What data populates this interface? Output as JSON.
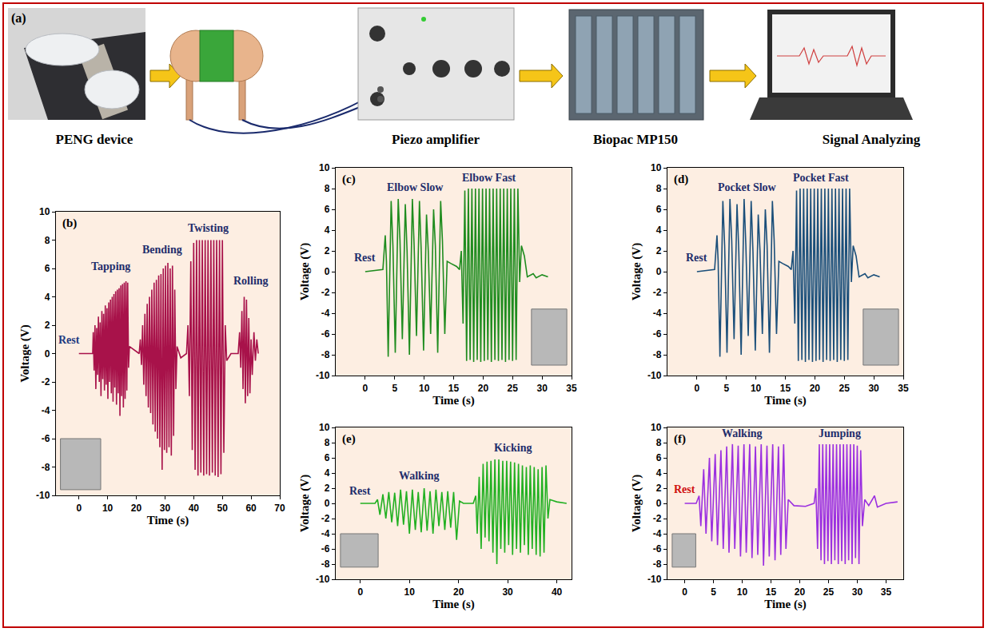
{
  "diagram": {
    "label": "(a)",
    "steps": [
      "PENG device",
      "Piezo amplifier",
      "Biopac MP150",
      "Signal Analyzing"
    ]
  },
  "chart_data": [
    {
      "type": "line",
      "panel_label": "(b)",
      "xlabel": "Time (s)",
      "ylabel": "Voltage (V)",
      "color": "#a8124a",
      "grid": false,
      "xlim": [
        -8,
        70
      ],
      "xticks": [
        0,
        10,
        20,
        30,
        40,
        50,
        60,
        70
      ],
      "ylim": [
        -10,
        10
      ],
      "yticks": [
        -10,
        -8,
        -6,
        -4,
        -2,
        0,
        2,
        4,
        6,
        8,
        10
      ],
      "x": [
        0,
        4.8,
        5.0,
        5.3,
        5.6,
        5.9,
        6.2,
        6.5,
        6.8,
        7.1,
        7.4,
        7.7,
        8.0,
        8.3,
        8.6,
        8.9,
        9.2,
        9.5,
        9.8,
        10.1,
        10.4,
        10.7,
        11.0,
        11.3,
        11.6,
        11.9,
        12.2,
        12.5,
        12.8,
        13.1,
        13.4,
        13.7,
        14.0,
        14.3,
        14.6,
        14.9,
        15.2,
        15.5,
        15.8,
        16.1,
        16.4,
        16.7,
        17.0,
        17.3,
        17.6,
        19.5,
        21.0,
        21.4,
        21.8,
        22.2,
        22.6,
        23.0,
        23.4,
        23.8,
        24.2,
        24.6,
        25.0,
        25.4,
        25.8,
        26.2,
        26.6,
        27.0,
        27.4,
        27.8,
        28.2,
        28.6,
        29.0,
        29.4,
        29.8,
        30.2,
        30.6,
        31.0,
        31.4,
        31.8,
        32.2,
        32.6,
        33.0,
        33.4,
        33.8,
        34.2,
        35.5,
        37.5,
        38.0,
        38.5,
        39.0,
        39.5,
        40.0,
        40.5,
        41.0,
        41.5,
        42.0,
        42.5,
        43.0,
        43.5,
        44.0,
        44.5,
        45.0,
        45.5,
        46.0,
        46.5,
        47.0,
        47.5,
        48.0,
        48.5,
        49.0,
        49.5,
        50.0,
        50.5,
        51.0,
        51.5,
        53.0,
        55.5,
        56.0,
        56.4,
        56.8,
        57.2,
        57.6,
        58.0,
        58.4,
        58.8,
        59.2,
        59.6,
        60.0,
        60.4,
        61.0,
        61.5,
        62.0,
        62.5
      ],
      "values": [
        0,
        0,
        1.5,
        -1.2,
        2.0,
        -2.5,
        1.8,
        -1.5,
        2.6,
        -2.0,
        2.2,
        -3.0,
        3.0,
        -1.8,
        2.8,
        -2.6,
        3.4,
        -2.2,
        3.2,
        -3.2,
        3.6,
        -2.0,
        3.8,
        -2.8,
        4.0,
        -3.4,
        4.2,
        -2.4,
        4.4,
        -3.6,
        4.5,
        -2.8,
        4.6,
        -4.4,
        4.8,
        -3.0,
        4.9,
        -3.8,
        5.0,
        -3.2,
        5.1,
        -2.6,
        5.0,
        -1.0,
        0.5,
        0.2,
        0,
        1.0,
        -0.8,
        2.0,
        -2.2,
        2.8,
        -3.0,
        3.5,
        -3.8,
        4.0,
        -4.2,
        4.5,
        -5.0,
        5.0,
        -5.5,
        5.2,
        -6.0,
        5.5,
        -6.6,
        5.6,
        -8.2,
        6.0,
        -6.8,
        6.2,
        -7.0,
        6.4,
        -6.6,
        6.0,
        -7.2,
        6.2,
        -5.8,
        4.5,
        -2.5,
        0.5,
        -0.3,
        0,
        2.0,
        -3.0,
        6.5,
        -6.8,
        7.8,
        -8.2,
        8.0,
        -8.6,
        8.0,
        -8.4,
        8.0,
        -8.6,
        8.0,
        -8.5,
        8.0,
        -8.6,
        8.0,
        -8.4,
        8.0,
        -8.6,
        8.0,
        -8.7,
        8.0,
        -8.5,
        8.0,
        -7.0,
        2.0,
        -0.5,
        0,
        0,
        1.5,
        -1.0,
        3.0,
        -2.5,
        4.0,
        -3.5,
        3.8,
        -3.0,
        2.5,
        -2.8,
        1.0,
        -1.5,
        1.5,
        -0.5,
        1.0,
        0
      ],
      "annotations": [
        {
          "text": "Rest",
          "x": -3.5,
          "y": 0.4,
          "color": "#1f3a80"
        },
        {
          "text": "Tapping",
          "x": 11,
          "y": 5.6,
          "color": "#1f2d6b"
        },
        {
          "text": "Bending",
          "x": 29,
          "y": 6.8,
          "color": "#1f2d6b"
        },
        {
          "text": "Twisting",
          "x": 45,
          "y": 8.3,
          "color": "#1f2d6b"
        },
        {
          "text": "Rolling",
          "x": 60,
          "y": 4.6,
          "color": "#1f2d6b"
        }
      ]
    },
    {
      "type": "line",
      "panel_label": "(c)",
      "xlabel": "Time (s)",
      "ylabel": "Voltage (V)",
      "color": "#1f8c1f",
      "grid": false,
      "xlim": [
        -5,
        35
      ],
      "xticks": [
        0,
        5,
        10,
        15,
        20,
        25,
        30,
        35
      ],
      "ylim": [
        -10,
        10
      ],
      "yticks": [
        -10,
        -8,
        -6,
        -4,
        -2,
        0,
        2,
        4,
        6,
        8,
        10
      ],
      "x": [
        0,
        3.0,
        3.4,
        3.6,
        3.9,
        4.4,
        4.7,
        5.1,
        5.6,
        5.9,
        6.3,
        6.8,
        7.1,
        7.5,
        8.0,
        8.3,
        8.7,
        9.2,
        9.5,
        9.9,
        10.4,
        10.7,
        11.1,
        11.6,
        11.9,
        12.3,
        12.8,
        13.1,
        13.5,
        13.9,
        14.5,
        15.5,
        16.0,
        16.3,
        16.6,
        16.9,
        17.2,
        17.5,
        17.8,
        18.1,
        18.4,
        18.7,
        19.0,
        19.3,
        19.6,
        19.9,
        20.2,
        20.5,
        20.8,
        21.1,
        21.4,
        21.7,
        22.0,
        22.3,
        22.6,
        22.9,
        23.2,
        23.5,
        23.8,
        24.1,
        24.4,
        24.7,
        25.0,
        25.3,
        25.6,
        25.9,
        26.2,
        26.5,
        27.0,
        27.5,
        28.5,
        29.0,
        30.0,
        31.0
      ],
      "values": [
        0,
        0.2,
        3.5,
        1.0,
        -8.2,
        6.8,
        2.5,
        -7.8,
        7.0,
        3.0,
        -6.5,
        6.5,
        2.0,
        -8.0,
        7.0,
        2.5,
        -6.2,
        6.8,
        2.0,
        -7.6,
        5.5,
        2.0,
        -6.0,
        6.0,
        2.5,
        -7.8,
        6.8,
        3.0,
        -6.0,
        1.0,
        0.8,
        0.5,
        0.2,
        2.0,
        -5.0,
        7.8,
        -8.6,
        8.0,
        -8.5,
        8.0,
        -8.7,
        8.0,
        -8.5,
        8.0,
        -8.7,
        8.0,
        -8.6,
        8.0,
        -8.5,
        8.0,
        -8.7,
        8.0,
        -8.5,
        8.0,
        -8.6,
        8.0,
        -8.5,
        8.0,
        -8.7,
        8.0,
        -8.5,
        8.0,
        -8.6,
        8.0,
        -8.5,
        8.0,
        -1.0,
        2.5,
        1.5,
        -0.5,
        -0.2,
        -0.6,
        -0.3,
        -0.5
      ],
      "annotations": [
        {
          "text": "Rest",
          "x": 0,
          "y": 0.6,
          "color": "#1f2d6b"
        },
        {
          "text": "Elbow Slow",
          "x": 8.5,
          "y": 7.4,
          "color": "#1f2d6b"
        },
        {
          "text": "Elbow Fast",
          "x": 21,
          "y": 8.3,
          "color": "#1f2d6b"
        }
      ]
    },
    {
      "type": "line",
      "panel_label": "(d)",
      "xlabel": "Time (s)",
      "ylabel": "Voltage (V)",
      "color": "#1b4f7a",
      "grid": false,
      "xlim": [
        -5,
        35
      ],
      "xticks": [
        0,
        5,
        10,
        15,
        20,
        25,
        30,
        35
      ],
      "ylim": [
        -10,
        10
      ],
      "yticks": [
        -10,
        -8,
        -6,
        -4,
        -2,
        0,
        2,
        4,
        6,
        8,
        10
      ],
      "x": [
        0,
        3.0,
        3.4,
        3.6,
        3.9,
        4.4,
        4.7,
        5.1,
        5.6,
        5.9,
        6.3,
        6.8,
        7.1,
        7.5,
        8.0,
        8.3,
        8.7,
        9.2,
        9.5,
        9.9,
        10.4,
        10.7,
        11.1,
        11.6,
        11.9,
        12.3,
        12.8,
        13.1,
        13.5,
        13.9,
        14.5,
        15.5,
        16.0,
        16.3,
        16.6,
        16.9,
        17.2,
        17.5,
        17.8,
        18.1,
        18.4,
        18.7,
        19.0,
        19.3,
        19.6,
        19.9,
        20.2,
        20.5,
        20.8,
        21.1,
        21.4,
        21.7,
        22.0,
        22.3,
        22.6,
        22.9,
        23.2,
        23.5,
        23.8,
        24.1,
        24.4,
        24.7,
        25.0,
        25.3,
        25.6,
        25.9,
        26.2,
        26.5,
        27.0,
        27.5,
        28.5,
        29.0,
        30.0,
        31.0
      ],
      "values": [
        0,
        0.2,
        3.5,
        1.0,
        -8.2,
        6.8,
        2.5,
        -7.8,
        7.0,
        3.0,
        -6.5,
        6.5,
        2.0,
        -8.0,
        7.0,
        2.5,
        -6.2,
        6.8,
        2.0,
        -7.6,
        5.5,
        2.0,
        -6.0,
        6.0,
        2.5,
        -7.8,
        6.8,
        3.0,
        -6.0,
        1.0,
        0.8,
        0.5,
        0.2,
        2.0,
        -5.0,
        7.8,
        -8.6,
        8.0,
        -8.5,
        8.0,
        -8.7,
        8.0,
        -8.5,
        8.0,
        -8.7,
        8.0,
        -8.6,
        8.0,
        -8.5,
        8.0,
        -8.7,
        8.0,
        -8.5,
        8.0,
        -8.6,
        8.0,
        -8.5,
        8.0,
        -8.7,
        8.0,
        -8.5,
        8.0,
        -8.6,
        8.0,
        -8.5,
        8.0,
        -1.0,
        2.5,
        1.5,
        -0.5,
        -0.2,
        -0.6,
        -0.3,
        -0.5
      ],
      "annotations": [
        {
          "text": "Rest",
          "x": 0,
          "y": 0.6,
          "color": "#1f2d6b"
        },
        {
          "text": "Pocket Slow",
          "x": 8.5,
          "y": 7.4,
          "color": "#1f2d6b"
        },
        {
          "text": "Pocket Fast",
          "x": 21,
          "y": 8.3,
          "color": "#1f2d6b"
        }
      ]
    },
    {
      "type": "line",
      "panel_label": "(e)",
      "xlabel": "Time (s)",
      "ylabel": "Voltage (V)",
      "color": "#22b022",
      "grid": false,
      "xlim": [
        -5,
        43
      ],
      "xticks": [
        0,
        10,
        20,
        30,
        40
      ],
      "ylim": [
        -10,
        10
      ],
      "yticks": [
        -10,
        -8,
        -6,
        -4,
        -2,
        0,
        2,
        4,
        6,
        8,
        10
      ],
      "x": [
        0,
        3.0,
        3.5,
        4.0,
        4.6,
        5.2,
        5.8,
        6.4,
        7.0,
        7.6,
        8.2,
        8.8,
        9.4,
        10.0,
        10.6,
        11.2,
        11.8,
        12.4,
        13.0,
        13.6,
        14.2,
        14.8,
        15.4,
        16.0,
        16.6,
        17.2,
        17.8,
        18.4,
        19.0,
        19.6,
        20.2,
        21.0,
        23.0,
        23.5,
        23.8,
        24.2,
        24.6,
        25.0,
        25.4,
        25.8,
        26.2,
        26.6,
        27.0,
        27.4,
        27.8,
        28.2,
        28.6,
        29.0,
        29.4,
        29.8,
        30.2,
        30.6,
        31.0,
        31.4,
        31.8,
        32.2,
        32.6,
        33.0,
        33.4,
        33.8,
        34.2,
        34.6,
        35.0,
        35.4,
        35.8,
        36.2,
        36.6,
        37.0,
        37.4,
        37.8,
        38.2,
        38.6,
        40.0,
        42.0
      ],
      "values": [
        0,
        0,
        0.5,
        -1.5,
        1.2,
        -2.0,
        1.5,
        -2.5,
        1.4,
        -3.0,
        1.8,
        -2.8,
        1.6,
        -4.0,
        1.8,
        -3.5,
        1.5,
        -3.8,
        2.0,
        -3.6,
        1.6,
        -4.0,
        1.8,
        -3.0,
        1.5,
        -3.5,
        1.6,
        -3.2,
        1.5,
        -4.8,
        0.3,
        0,
        0,
        1.0,
        -4.0,
        3.5,
        -6.0,
        5.2,
        -4.5,
        5.5,
        -5.0,
        5.6,
        -6.5,
        5.8,
        -8.0,
        5.8,
        -6.0,
        5.6,
        -6.5,
        5.6,
        -5.5,
        5.5,
        -6.8,
        5.4,
        -6.0,
        5.2,
        -6.5,
        5.0,
        -5.5,
        4.8,
        -6.8,
        5.0,
        -6.0,
        4.8,
        -6.8,
        4.5,
        -7.0,
        4.8,
        -6.5,
        5.0,
        -2.0,
        0.5,
        0.2,
        0
      ],
      "annotations": [
        {
          "text": "Rest",
          "x": 0,
          "y": 0.6,
          "color": "#1f2d6b"
        },
        {
          "text": "Walking",
          "x": 12,
          "y": 2.6,
          "color": "#1f2d6b"
        },
        {
          "text": "Kicking",
          "x": 31,
          "y": 6.3,
          "color": "#1f2d6b"
        }
      ]
    },
    {
      "type": "line",
      "panel_label": "(f)",
      "xlabel": "Time (s)",
      "ylabel": "Voltage (V)",
      "color": "#9b30e0",
      "grid": false,
      "xlim": [
        -3,
        38
      ],
      "xticks": [
        0,
        5,
        10,
        15,
        20,
        25,
        30,
        35
      ],
      "ylim": [
        -10,
        10
      ],
      "yticks": [
        -10,
        -8,
        -6,
        -4,
        -2,
        0,
        2,
        4,
        6,
        8,
        10
      ],
      "x": [
        0,
        2.0,
        2.5,
        2.8,
        3.3,
        3.7,
        4.3,
        4.7,
        5.3,
        5.7,
        6.3,
        6.7,
        7.3,
        7.7,
        8.3,
        8.7,
        9.3,
        9.7,
        10.3,
        10.7,
        11.3,
        11.7,
        12.3,
        12.7,
        13.3,
        13.7,
        14.3,
        14.7,
        15.3,
        15.7,
        16.3,
        16.7,
        17.2,
        17.6,
        18.0,
        19.0,
        21.0,
        22.5,
        22.8,
        23.1,
        23.4,
        23.7,
        24.0,
        24.3,
        24.6,
        24.9,
        25.2,
        25.5,
        25.8,
        26.1,
        26.4,
        26.7,
        27.0,
        27.3,
        27.6,
        27.9,
        28.2,
        28.5,
        28.8,
        29.1,
        29.4,
        29.7,
        30.0,
        30.3,
        30.6,
        30.9,
        31.3,
        32.0,
        33.0,
        33.5,
        35.0,
        37.0
      ],
      "values": [
        0,
        0,
        1.0,
        -3.0,
        4.5,
        -4.0,
        6.0,
        -5.0,
        6.5,
        -5.5,
        7.0,
        -6.0,
        7.5,
        -6.5,
        7.8,
        -6.0,
        7.6,
        -7.0,
        7.8,
        -6.5,
        7.8,
        -7.2,
        7.5,
        -6.8,
        7.8,
        -8.2,
        7.6,
        -7.0,
        7.8,
        -7.5,
        7.5,
        -6.8,
        7.8,
        -6.0,
        0.5,
        -0.3,
        -0.4,
        0,
        2.0,
        -6.0,
        7.8,
        -7.5,
        7.8,
        -8.0,
        7.8,
        -7.6,
        7.8,
        -8.0,
        7.8,
        -7.5,
        7.8,
        -8.0,
        7.8,
        -7.6,
        7.8,
        -8.0,
        7.8,
        -7.5,
        7.8,
        -8.0,
        7.8,
        -7.2,
        7.6,
        -8.0,
        7.0,
        -3.0,
        0.5,
        -0.3,
        1.0,
        -0.5,
        0,
        0.2
      ],
      "annotations": [
        {
          "text": "Rest",
          "x": 0,
          "y": 0.8,
          "color": "#d01010"
        },
        {
          "text": "Walking",
          "x": 10,
          "y": 8.2,
          "color": "#1f2d6b"
        },
        {
          "text": "Jumping",
          "x": 27,
          "y": 8.2,
          "color": "#1f2d6b"
        }
      ]
    }
  ]
}
